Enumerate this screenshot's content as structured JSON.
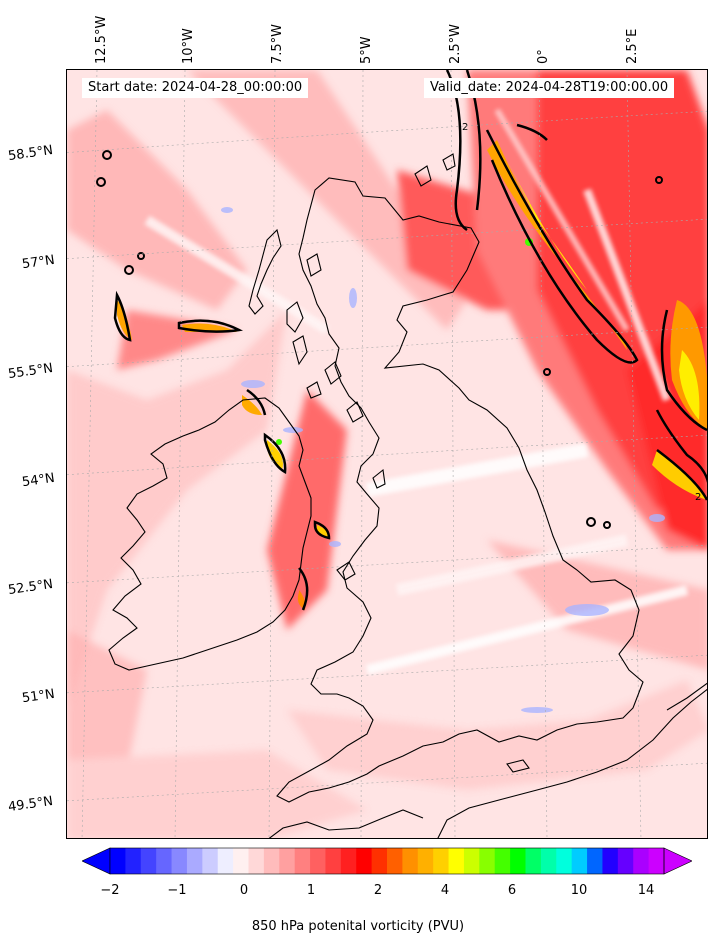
{
  "map": {
    "start_label": "Start date: 2024-04-28_00:00:00",
    "valid_label": "Valid_date: 2024-04-28T19:00:00.00",
    "lon_labels": [
      "12.5°W",
      "10°W",
      "7.5°W",
      "5°W",
      "2.5°W",
      "0°",
      "2.5°E"
    ],
    "lat_labels": [
      "58.5°N",
      "57°N",
      "55.5°N",
      "54°N",
      "52.5°N",
      "51°N",
      "49.5°N"
    ],
    "contour_label": "2"
  },
  "colorbar": {
    "label": "850 hPa potenital vorticity (PVU)",
    "ticks": [
      "−2",
      "−1",
      "0",
      "1",
      "2",
      "4",
      "6",
      "10",
      "14"
    ],
    "colors": [
      "#0000ff",
      "#2222ff",
      "#4444ff",
      "#6666ff",
      "#8888ff",
      "#aaaaff",
      "#ccccff",
      "#eeeeff",
      "#fff0f0",
      "#ffd8d8",
      "#ffbcbc",
      "#ffa0a0",
      "#ff8080",
      "#ff6060",
      "#ff4040",
      "#ff2020",
      "#ff0000",
      "#ff3000",
      "#ff6000",
      "#ff9000",
      "#ffb000",
      "#ffd000",
      "#ffff00",
      "#ccff00",
      "#88ff00",
      "#44ff00",
      "#00ff00",
      "#00ff66",
      "#00ffaa",
      "#00ffdd",
      "#00ccff",
      "#0066ff",
      "#2200ff",
      "#6600ff",
      "#aa00ff",
      "#cc00ff"
    ]
  }
}
